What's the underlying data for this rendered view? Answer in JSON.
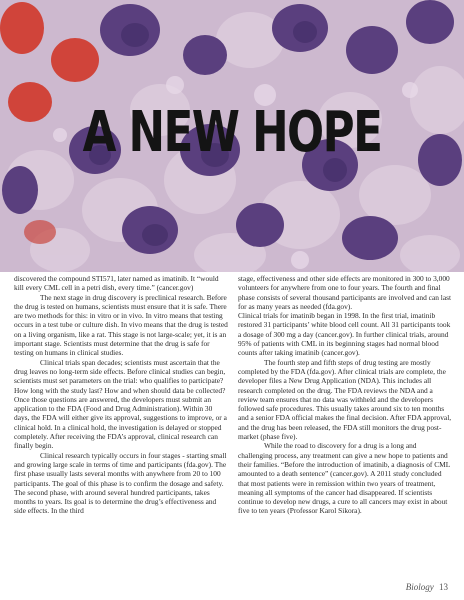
{
  "title": "A NEW HOPE",
  "image": {
    "description_icon": "microscope-cells-image",
    "colors": {
      "background": "#cdb9cf",
      "cell": "#d9c6d6",
      "nucleus": "#5a3f7e",
      "red_cell": "#d0443a"
    }
  },
  "column1": [
    {
      "text": "discovered the compound STI571, later named as imatinib. It “would kill every CML cell in a petri dish, every time.” (cancer.gov)",
      "indent": false
    },
    {
      "text": "The next stage in drug discovery is preclinical research. Before the drug is tested on humans, scientists must ensure that it is safe. There are two methods for this: in vitro or in vivo. In vitro means that testing occurs in a test tube or culture dish. In vivo means that the drug is tested on a living organism, like a rat. This stage is not large-scale; yet, it is an important stage. Scientists must determine that the drug is safe for testing on humans in clinical studies.",
      "indent": true
    },
    {
      "text": "Clinical trials span decades; scientists must ascertain that the drug leaves no long-term side effects. Before clinical studies can begin, scientists must set parameters on the trial: who qualifies to participate? How long with the study last? How and when should data be collected? Once those questions are answered, the developers must submit an application to the FDA (Food and Drug Administration). Within 30 days, the FDA will either give its approval, suggestions to improve, or a clinical hold. In a clinical hold, the investigation is delayed or stopped completely. After receiving the FDA’s approval, clinical research can finally begin.",
      "indent": true
    },
    {
      "text": "Clinical research typically occurs in four stages - starting small and growing large scale in terms of time and participants (fda.gov). The first phase usually lasts several months with anywhere from 20 to 100 participants. The goal of this phase is to confirm the dosage and safety. The second phase, with around several hundred participants, takes months to years. Its goal is to determine the drug’s effectiveness and side effects. In the third",
      "indent": true
    }
  ],
  "column2": [
    {
      "text": "stage, effectiveness and other side effects are monitored in 300 to 3,000 volunteers for anywhere from one to four years. The fourth and final phase consists of several thousand participants are involved and can last for as many years as needed (fda.gov).",
      "indent": false
    },
    {
      "text": "Clinical trials for imatinib began in 1998. In the first trial, imatinib restored 31 participants’ white blood cell count. All 31 participants took a dosage of 300 mg a day (cancer.gov). In further clinical trials, around 95% of patients with CML in its beginning stages had normal blood counts after taking imatinib (cancer.gov).",
      "indent": false
    },
    {
      "text": "The fourth step and fifth steps of drug testing are mostly completed by the FDA (fda.gov). After clinical trials are complete, the developer files a New Drug Application (NDA). This includes all research completed on the drug. The FDA reviews the NDA and a review team ensures that no data was withheld and the developers followed safe procedures. This usually takes around six to ten months and a senior FDA official makes the final decision. After FDA approval, and the drug has been released, the FDA still monitors the drug post-market (phase five).",
      "indent": true
    },
    {
      "text": "While the road to discovery for a drug is a long and challenging process, any treatment can give a new hope to patients and their families. “Before the introduction of imatinib, a diagnosis of CML amounted to a death sentence” (cancer.gov). A 2011 study concluded that most patients were in remission within two years of treatment, meaning all symptoms of the cancer had disappeared. If scientists continue to develop new drugs, a cure to all cancers may exist in about five to ten years (Professor Karol Sikora).",
      "indent": true
    }
  ],
  "footer": {
    "section": "Biology",
    "page": "13"
  }
}
